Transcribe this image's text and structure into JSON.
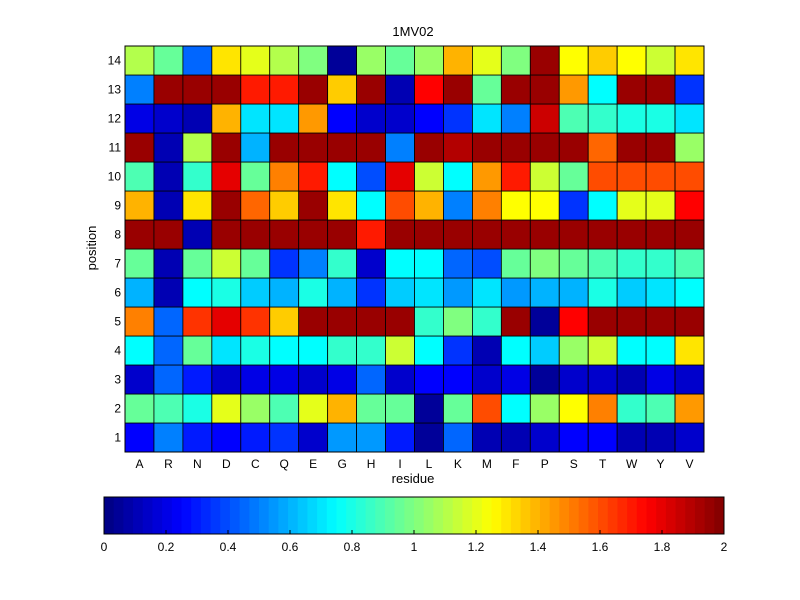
{
  "chart_data": {
    "type": "heatmap",
    "title": "1MV02",
    "xlabel": "residue",
    "ylabel": "position",
    "x_categories": [
      "A",
      "R",
      "N",
      "D",
      "C",
      "Q",
      "E",
      "G",
      "H",
      "I",
      "L",
      "K",
      "M",
      "F",
      "P",
      "S",
      "T",
      "W",
      "Y",
      "V"
    ],
    "y_categories": [
      "1",
      "2",
      "3",
      "4",
      "5",
      "6",
      "7",
      "8",
      "9",
      "10",
      "11",
      "12",
      "13",
      "14"
    ],
    "values": [
      [
        0.25,
        0.5,
        0.3,
        0.25,
        0.3,
        0.35,
        0.15,
        0.55,
        0.55,
        0.3,
        0.05,
        0.45,
        0.1,
        0.1,
        0.15,
        0.25,
        0.25,
        0.1,
        0.1,
        0.15
      ],
      [
        0.95,
        0.9,
        0.8,
        1.2,
        1.05,
        0.9,
        1.2,
        1.4,
        0.95,
        0.95,
        0.05,
        0.95,
        1.6,
        0.75,
        1.05,
        1.25,
        1.5,
        0.85,
        0.9,
        1.45
      ],
      [
        0.15,
        0.45,
        0.3,
        0.15,
        0.2,
        0.2,
        0.15,
        0.2,
        0.45,
        0.15,
        0.25,
        0.25,
        0.15,
        0.2,
        0.05,
        0.15,
        0.15,
        0.1,
        0.2,
        0.15
      ],
      [
        0.75,
        0.45,
        0.95,
        0.7,
        0.8,
        0.75,
        0.75,
        0.85,
        0.85,
        1.15,
        0.75,
        0.35,
        0.1,
        0.75,
        0.65,
        1.05,
        1.15,
        0.75,
        0.75,
        1.3
      ],
      [
        1.5,
        0.45,
        1.65,
        1.8,
        1.65,
        1.35,
        1.95,
        1.95,
        1.95,
        1.95,
        0.85,
        1.0,
        0.85,
        1.95,
        0.05,
        1.75,
        1.95,
        1.95,
        1.95,
        1.95
      ],
      [
        0.6,
        0.1,
        0.75,
        0.8,
        0.65,
        0.6,
        0.8,
        0.6,
        0.35,
        0.65,
        0.7,
        0.55,
        0.7,
        0.55,
        0.6,
        0.6,
        0.8,
        0.65,
        0.7,
        0.75
      ],
      [
        0.95,
        0.1,
        0.95,
        1.15,
        0.95,
        0.35,
        0.5,
        0.85,
        0.15,
        0.75,
        0.75,
        0.45,
        0.4,
        0.95,
        1.0,
        0.95,
        0.9,
        0.85,
        0.85,
        0.9
      ],
      [
        1.95,
        1.95,
        0.1,
        1.95,
        1.95,
        1.95,
        1.95,
        1.95,
        1.7,
        1.95,
        1.95,
        1.95,
        1.95,
        1.95,
        1.95,
        1.95,
        1.95,
        1.95,
        1.95,
        1.95
      ],
      [
        1.4,
        0.1,
        1.3,
        1.95,
        1.55,
        1.35,
        1.95,
        1.3,
        0.75,
        1.6,
        1.4,
        0.5,
        1.5,
        1.25,
        1.25,
        0.35,
        0.75,
        1.2,
        1.2,
        1.75
      ],
      [
        0.9,
        0.1,
        0.85,
        1.8,
        0.95,
        1.5,
        1.7,
        0.75,
        0.4,
        1.8,
        1.15,
        0.75,
        1.45,
        1.7,
        1.15,
        0.95,
        1.6,
        1.6,
        1.6,
        1.6
      ],
      [
        1.95,
        0.1,
        1.1,
        1.95,
        0.6,
        1.95,
        1.95,
        1.95,
        1.95,
        0.5,
        1.95,
        1.9,
        1.95,
        1.95,
        1.95,
        1.95,
        1.55,
        1.95,
        1.95,
        1.05
      ],
      [
        0.2,
        0.15,
        0.1,
        1.4,
        0.7,
        0.7,
        1.45,
        0.25,
        0.15,
        0.15,
        0.25,
        0.35,
        0.7,
        0.5,
        1.85,
        0.9,
        0.85,
        0.8,
        0.8,
        0.7
      ],
      [
        0.5,
        1.95,
        1.95,
        1.95,
        1.7,
        1.7,
        1.95,
        1.35,
        1.95,
        0.1,
        1.75,
        1.95,
        0.95,
        1.95,
        1.95,
        1.45,
        0.75,
        1.95,
        1.95,
        0.35
      ],
      [
        1.1,
        0.95,
        0.45,
        1.3,
        1.2,
        1.1,
        1.0,
        0.05,
        1.05,
        0.95,
        1.05,
        1.4,
        1.2,
        1.0,
        1.95,
        1.25,
        1.35,
        1.25,
        1.15,
        1.3
      ]
    ],
    "clim": [
      0,
      2
    ],
    "colormap": "jet",
    "colorbar": {
      "orientation": "horizontal",
      "placement": "bottom",
      "ticks": [
        0,
        0.2,
        0.4,
        0.6,
        0.8,
        1,
        1.2,
        1.4,
        1.6,
        1.8,
        2
      ],
      "tick_labels": [
        "0",
        "0.2",
        "0.4",
        "0.6",
        "0.8",
        "1",
        "1.2",
        "1.4",
        "1.6",
        "1.8",
        "2"
      ]
    },
    "grid": false
  }
}
